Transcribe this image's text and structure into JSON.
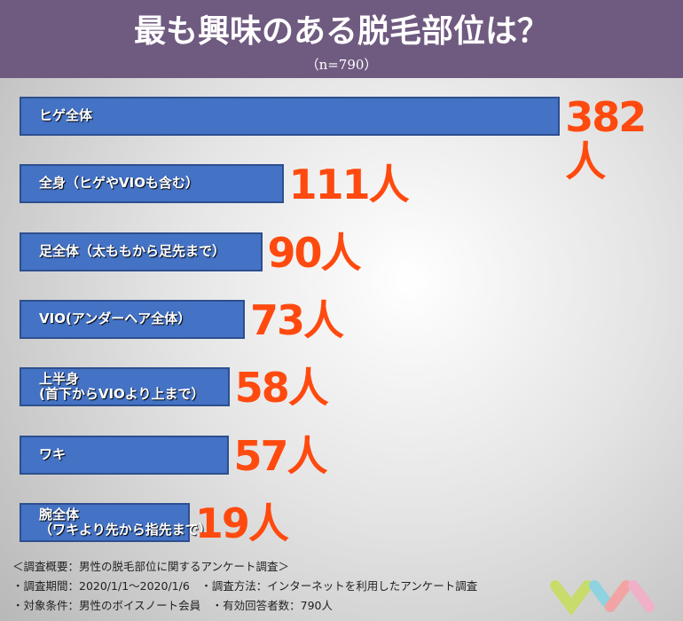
{
  "chart_data": {
    "type": "bar",
    "orientation": "horizontal",
    "title": "最も興味のある脱毛部位は？",
    "subtitle": "（n=790）",
    "categories": [
      "ヒゲ全体",
      "全身（ヒゲやVIOも含む）",
      "足全体（太ももから足先まで）",
      "VIO(アンダーヘア全体）",
      "上半身\n(首下からVIOより上まで）",
      "ワキ",
      "腕全体\n（ワキより先から指先まで）"
    ],
    "values": [
      382,
      111,
      90,
      73,
      58,
      57,
      19
    ],
    "value_labels": [
      "382人",
      "111人",
      "90人",
      "73人",
      "58人",
      "57人",
      "19人"
    ],
    "color": "#4472c4",
    "value_label_color": "#ff4a0f",
    "notes": [
      "＜調査概要：男性の脱毛部位に関するアンケート調査＞",
      "・調査期間：2020/1/1〜2020/1/6　・調査方法：インターネットを利用したアンケート調査",
      "・対象条件：男性のボイスノート会員　・有効回答者数：790人"
    ]
  }
}
